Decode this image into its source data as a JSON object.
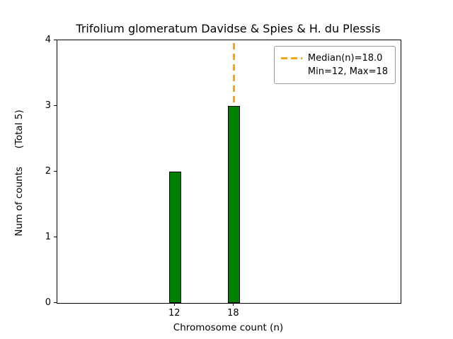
{
  "chart_data": {
    "type": "bar",
    "title": "Trifolium glomeratum Davidse & Spies & H. du Plessis",
    "xlabel": "Chromosome count (n)",
    "ylabel": "Num of counts      (Total 5)",
    "categories": [
      12,
      18
    ],
    "values": [
      2,
      3
    ],
    "bar_color": "#008000",
    "bar_edge_color": "#000000",
    "bar_width_units": 1.2,
    "xlim": [
      0,
      35
    ],
    "ylim": [
      0,
      4
    ],
    "yticks": [
      0,
      1,
      2,
      3,
      4
    ],
    "median": 18.0,
    "min": 12,
    "max": 18,
    "total_counts": 5,
    "median_line_color": "#FFA500",
    "grid": false,
    "legend": {
      "position": "upper right",
      "line1": "Median(n)=18.0",
      "line2": "Min=12, Max=18"
    }
  }
}
